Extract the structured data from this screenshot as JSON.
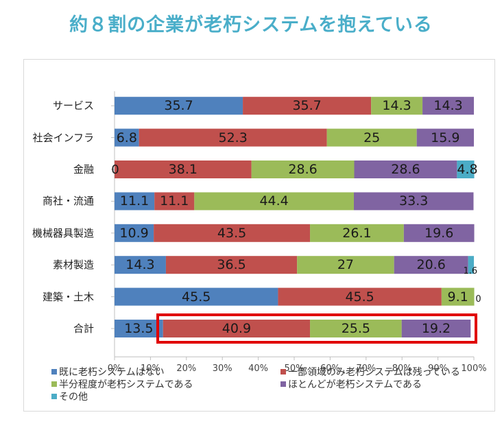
{
  "title": "約８割の企業が老朽システムを抱えている",
  "chart_data": {
    "type": "bar",
    "orientation": "horizontal",
    "stacked": true,
    "percent": true,
    "categories": [
      "サービス",
      "社会インフラ",
      "金融",
      "商社・流通",
      "機械器具製造",
      "素材製造",
      "建築・土木",
      "合計"
    ],
    "series": [
      {
        "name": "既に老朽システムはない",
        "color": "#4f81bd",
        "values": [
          35.7,
          6.8,
          0,
          11.1,
          10.9,
          14.3,
          45.5,
          13.5
        ]
      },
      {
        "name": "一部領域のみ老朽システムは残っている",
        "color": "#c0504d",
        "values": [
          35.7,
          52.3,
          38.1,
          11.1,
          43.5,
          36.5,
          45.5,
          40.9
        ]
      },
      {
        "name": "半分程度が老朽システムである",
        "color": "#9bbb59",
        "values": [
          14.3,
          25,
          28.6,
          44.4,
          26.1,
          27,
          9.1,
          25.5
        ]
      },
      {
        "name": "ほとんどが老朽システムである",
        "color": "#8064a2",
        "values": [
          14.3,
          15.9,
          28.6,
          33.3,
          19.6,
          20.6,
          0,
          19.2
        ]
      },
      {
        "name": "その他",
        "color": "#4bacc6",
        "values": [
          0,
          0,
          4.8,
          0,
          0,
          1.6,
          0,
          0
        ]
      }
    ],
    "xlim": [
      0,
      100
    ],
    "xticks": [
      "0%",
      "10%",
      "20%",
      "30%",
      "40%",
      "50%",
      "60%",
      "70%",
      "80%",
      "90%",
      "100%"
    ],
    "legend_position": "bottom",
    "highlight": {
      "category": "合計",
      "from_series": 1,
      "to_series": 3,
      "color": "#e00000"
    }
  }
}
